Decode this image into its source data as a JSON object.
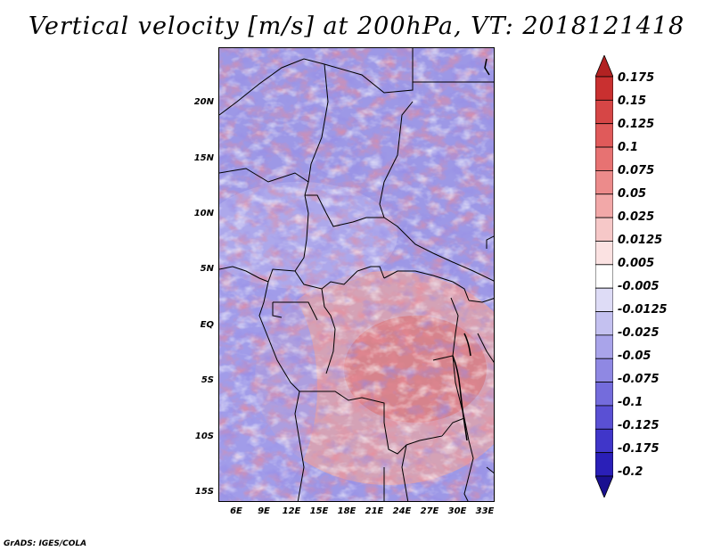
{
  "title": "Vertical velocity [m/s] at 200hPa, VT: 2018121418",
  "credit": "GrADS: IGES/COLA",
  "map": {
    "lat_labels": [
      "20N",
      "15N",
      "10N",
      "5N",
      "EQ",
      "5S",
      "10S",
      "15S"
    ],
    "lon_labels": [
      "6E",
      "9E",
      "12E",
      "15E",
      "18E",
      "21E",
      "24E",
      "27E",
      "30E",
      "33E"
    ],
    "lat_range": [
      -16,
      24
    ],
    "lon_range": [
      4,
      34
    ],
    "field": "vertical velocity"
  },
  "colorbar": {
    "labels": [
      "0.175",
      "0.15",
      "0.125",
      "0.1",
      "0.075",
      "0.05",
      "0.025",
      "0.0125",
      "0.005",
      "-0.005",
      "-0.0125",
      "-0.025",
      "-0.05",
      "-0.075",
      "-0.1",
      "-0.125",
      "-0.175",
      "-0.2"
    ],
    "colors": [
      "#b22222",
      "#c93030",
      "#d64646",
      "#e05a5a",
      "#e77272",
      "#ec8b8b",
      "#f2a8a8",
      "#f6c8c8",
      "#fbe2e2",
      "#ffffff",
      "#dedcf6",
      "#c4c1f0",
      "#a9a4ea",
      "#8f88e3",
      "#746cdc",
      "#5a50d4",
      "#4036c9",
      "#2a1fb8",
      "#1a1090"
    ]
  }
}
